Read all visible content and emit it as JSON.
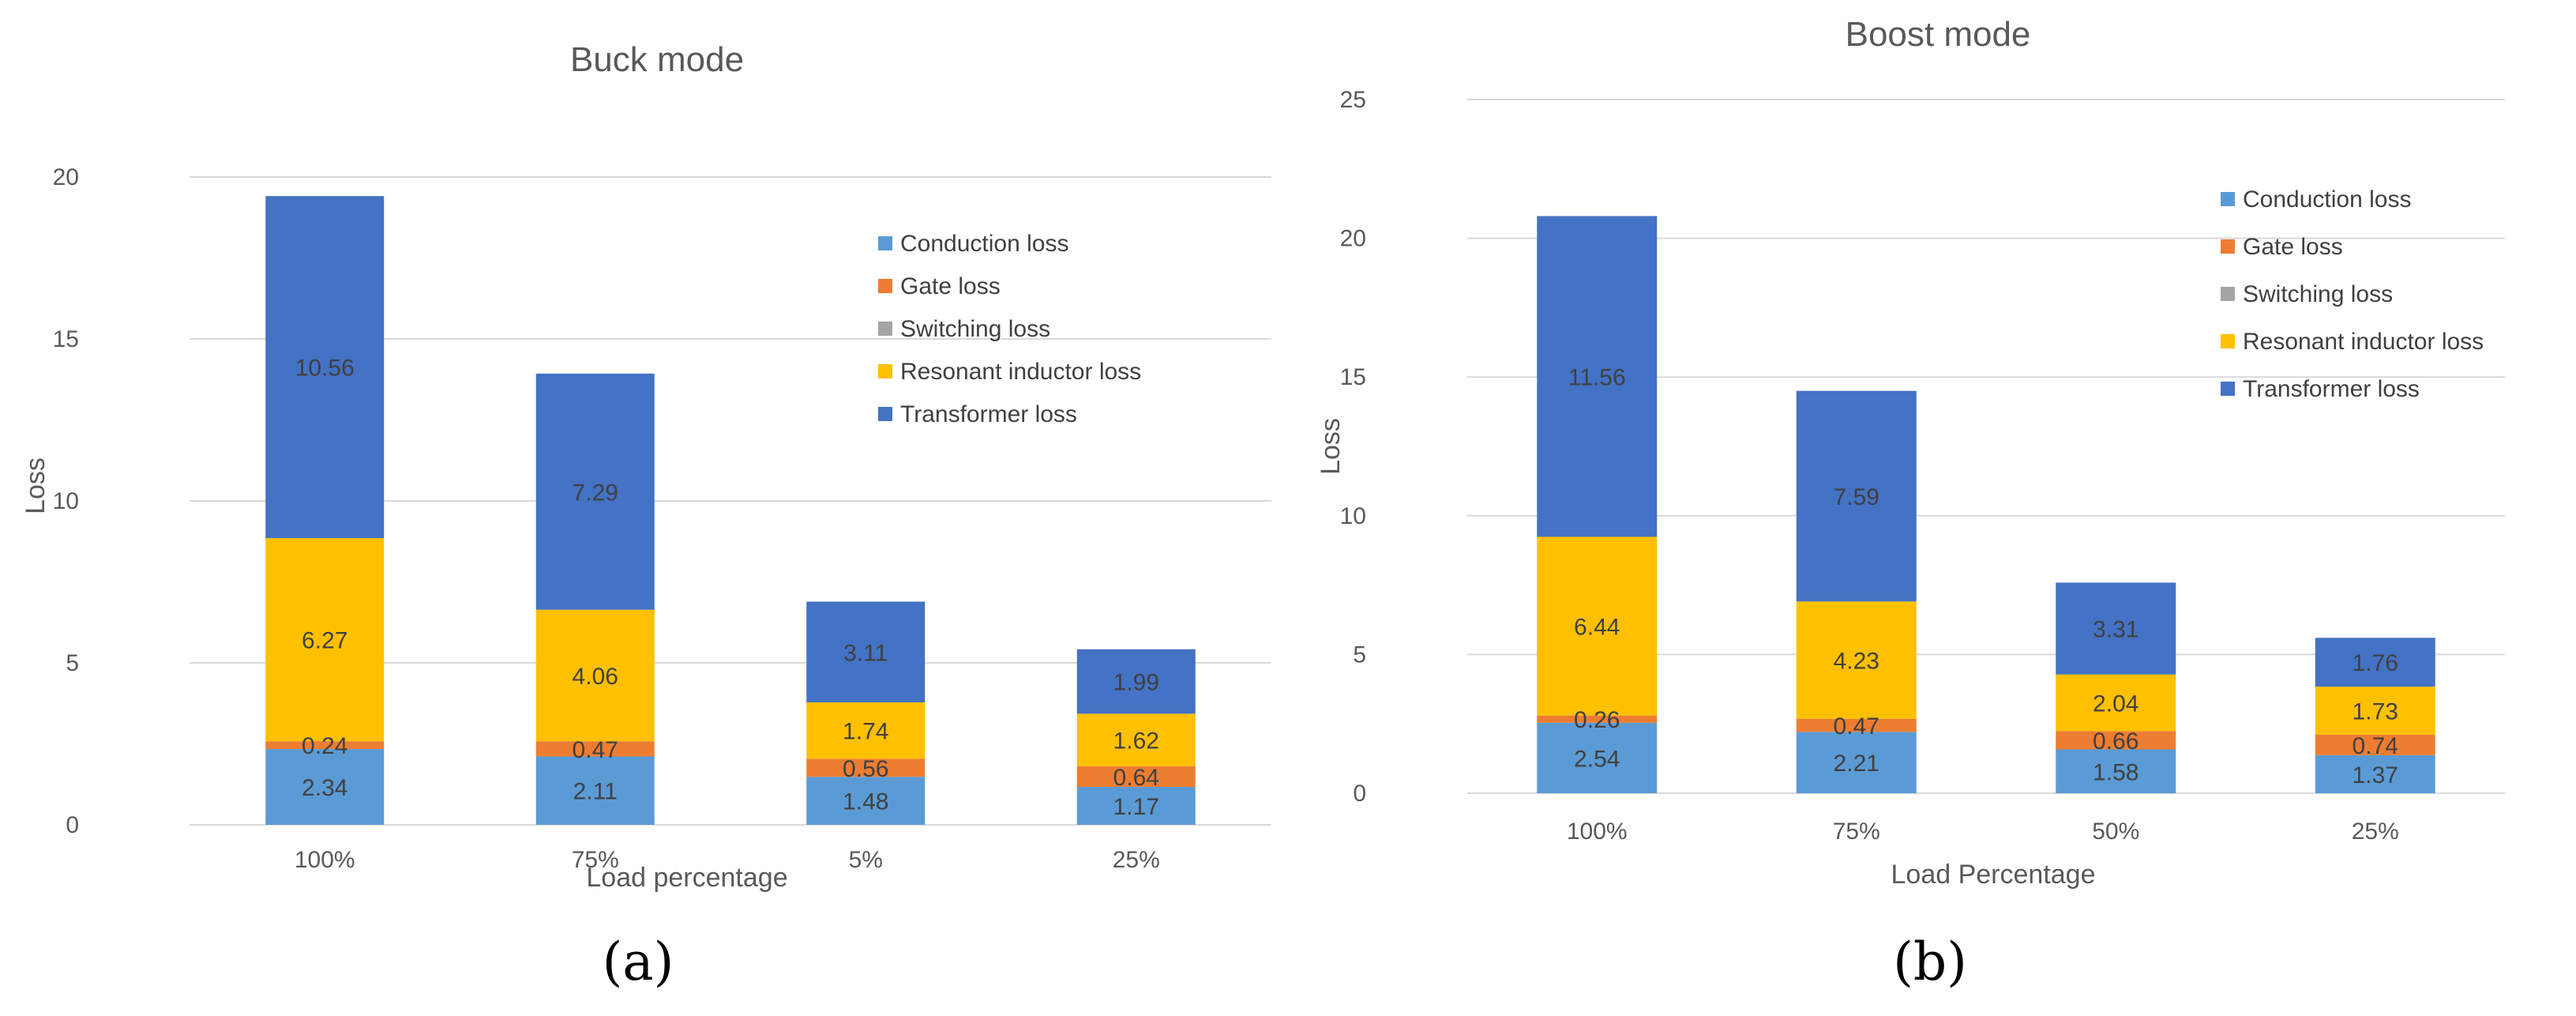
{
  "chart_data": [
    {
      "type": "bar",
      "stacked": true,
      "title": "Buck mode",
      "xlabel": "Load percentage",
      "ylabel": "Loss",
      "ylim": [
        0,
        20
      ],
      "yticks": [
        0,
        5,
        10,
        15,
        20
      ],
      "categories": [
        "100%",
        "75%",
        "5%",
        "25%"
      ],
      "series": [
        {
          "name": "Conduction loss",
          "color": "#5B9BD5",
          "values": [
            2.34,
            2.11,
            1.48,
            1.17
          ],
          "labels": [
            "2.34",
            "2.11",
            "1.48",
            "1.17"
          ]
        },
        {
          "name": "Gate loss",
          "color": "#ED7D31",
          "values": [
            0.24,
            0.47,
            0.56,
            0.64
          ],
          "labels": [
            "0.24",
            "0.47",
            "0.56",
            "0.64"
          ]
        },
        {
          "name": "Switching loss",
          "color": "#A5A5A5",
          "values": [
            0,
            0,
            0,
            0
          ],
          "labels": [
            "",
            "",
            "",
            ""
          ]
        },
        {
          "name": "Resonant inductor loss",
          "color": "#FFC000",
          "values": [
            6.27,
            4.06,
            1.74,
            1.62
          ],
          "labels": [
            "6.27",
            "4.06",
            "1.74",
            "1.62"
          ]
        },
        {
          "name": "Transformer loss",
          "color": "#4472C4",
          "values": [
            10.56,
            7.29,
            3.11,
            1.99
          ],
          "labels": [
            "10.56",
            "7.29",
            "3.11",
            "1.99"
          ]
        }
      ],
      "legend_position": "right",
      "grid": true,
      "caption": "(a)"
    },
    {
      "type": "bar",
      "stacked": true,
      "title": "Boost mode",
      "xlabel": "Load Percentage",
      "ylabel": "Loss",
      "ylim": [
        0,
        25
      ],
      "yticks": [
        0,
        5,
        10,
        15,
        20,
        25
      ],
      "categories": [
        "100%",
        "75%",
        "50%",
        "25%"
      ],
      "series": [
        {
          "name": "Conduction loss",
          "color": "#5B9BD5",
          "values": [
            2.54,
            2.21,
            1.58,
            1.37
          ],
          "labels": [
            "2.54",
            "2.21",
            "1.58",
            "1.37"
          ]
        },
        {
          "name": "Gate loss",
          "color": "#ED7D31",
          "values": [
            0.26,
            0.47,
            0.66,
            0.74
          ],
          "labels": [
            "0.26",
            "0.47",
            "0.66",
            "0.74"
          ]
        },
        {
          "name": "Switching loss",
          "color": "#A5A5A5",
          "values": [
            0,
            0,
            0,
            0
          ],
          "labels": [
            "",
            "",
            "",
            ""
          ]
        },
        {
          "name": "Resonant inductor loss",
          "color": "#FFC000",
          "values": [
            6.44,
            4.23,
            2.04,
            1.73
          ],
          "labels": [
            "6.44",
            "4.23",
            "2.04",
            "1.73"
          ]
        },
        {
          "name": "Transformer loss",
          "color": "#4472C4",
          "values": [
            11.56,
            7.59,
            3.31,
            1.76
          ],
          "labels": [
            "11.56",
            "7.59",
            "3.31",
            "1.76"
          ]
        }
      ],
      "legend_position": "right",
      "grid": true,
      "caption": "(b)"
    }
  ]
}
